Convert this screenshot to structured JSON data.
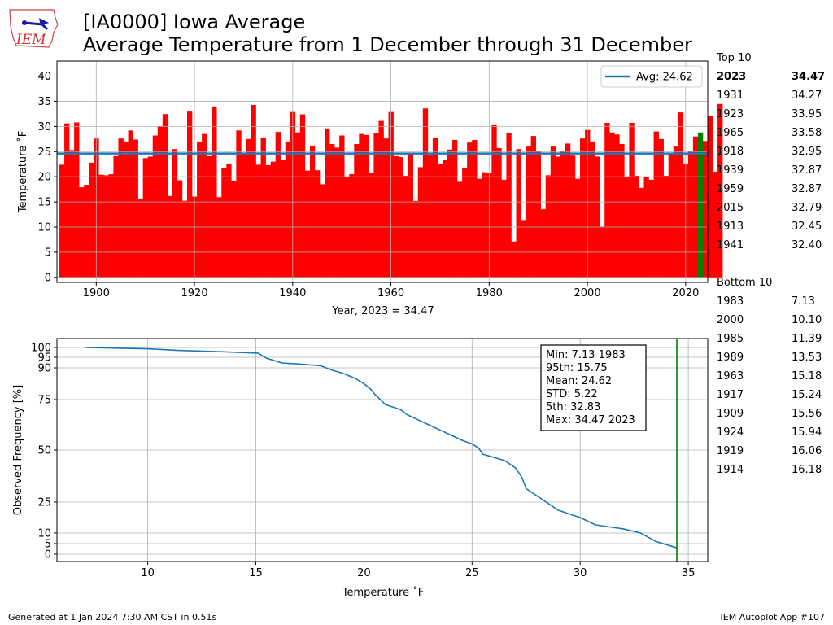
{
  "logo": {
    "text": "IEM"
  },
  "titles": {
    "line1": "[IA0000] Iowa Average",
    "line2": "Average Temperature from 1 December through 31 December"
  },
  "rankings": {
    "top_label": "Top 10",
    "top": [
      {
        "year": "2023",
        "value": "34.47"
      },
      {
        "year": "1931",
        "value": "34.27"
      },
      {
        "year": "1923",
        "value": "33.95"
      },
      {
        "year": "1965",
        "value": "33.58"
      },
      {
        "year": "1918",
        "value": "32.95"
      },
      {
        "year": "1939",
        "value": "32.87"
      },
      {
        "year": "1959",
        "value": "32.87"
      },
      {
        "year": "2015",
        "value": "32.79"
      },
      {
        "year": "1913",
        "value": "32.45"
      },
      {
        "year": "1941",
        "value": "32.40"
      }
    ],
    "bottom_label": "Bottom 10",
    "bottom": [
      {
        "year": "1983",
        "value": "7.13"
      },
      {
        "year": "2000",
        "value": "10.10"
      },
      {
        "year": "1985",
        "value": "11.39"
      },
      {
        "year": "1989",
        "value": "13.53"
      },
      {
        "year": "1963",
        "value": "15.18"
      },
      {
        "year": "1917",
        "value": "15.24"
      },
      {
        "year": "1909",
        "value": "15.56"
      },
      {
        "year": "1924",
        "value": "15.94"
      },
      {
        "year": "1919",
        "value": "16.06"
      },
      {
        "year": "1914",
        "value": "16.18"
      }
    ]
  },
  "footer": {
    "left": "Generated at 1 Jan 2024 7:30 AM CST in 0.51s",
    "right": "IEM Autoplot App #107"
  },
  "chart_data": [
    {
      "type": "bar",
      "xlabel": "Year, 2023 = 34.47",
      "ylabel": "Temperature ˚F",
      "xlim": [
        1892,
        2024.5
      ],
      "ylim": [
        -1,
        43
      ],
      "xticks": [
        1900,
        1920,
        1940,
        1960,
        1980,
        2000,
        2020
      ],
      "yticks": [
        0,
        5,
        10,
        15,
        20,
        25,
        30,
        35,
        40
      ],
      "grid": true,
      "bar_color": "#ff0000",
      "highlight_color": "#008000",
      "highlight_year": 2023,
      "average": 24.62,
      "average_color": "#1f77b4",
      "legend": {
        "label": "Avg: 24.62",
        "placement": "top-right"
      },
      "start_year": 1893,
      "values": [
        22.4,
        30.6,
        25.3,
        30.8,
        17.9,
        18.4,
        22.8,
        27.6,
        20.4,
        20.3,
        20.5,
        24.1,
        27.6,
        27.0,
        29.2,
        27.4,
        15.56,
        23.7,
        24.0,
        28.2,
        30.0,
        32.45,
        16.18,
        25.5,
        19.3,
        15.24,
        32.95,
        16.06,
        27.0,
        28.5,
        24.1,
        33.95,
        15.94,
        21.8,
        22.5,
        19.1,
        29.2,
        24.5,
        27.5,
        34.27,
        22.4,
        27.8,
        22.3,
        23.0,
        28.9,
        23.3,
        27.0,
        32.87,
        28.8,
        32.4,
        21.2,
        26.2,
        21.3,
        18.5,
        29.6,
        26.5,
        25.8,
        28.2,
        19.9,
        20.5,
        26.5,
        28.5,
        28.3,
        20.7,
        28.6,
        31.1,
        27.6,
        32.87,
        24.1,
        23.9,
        20.2,
        24.6,
        15.18,
        21.9,
        33.58,
        24.4,
        27.7,
        22.5,
        23.4,
        25.4,
        27.3,
        19.0,
        21.8,
        26.8,
        27.3,
        19.6,
        20.9,
        20.7,
        30.4,
        25.7,
        19.4,
        28.6,
        7.13,
        25.5,
        11.39,
        26.0,
        28.1,
        25.2,
        13.53,
        20.3,
        26.0,
        24.0,
        25.2,
        26.6,
        24.2,
        19.6,
        27.6,
        29.3,
        27.0,
        24.0,
        10.1,
        30.7,
        28.8,
        28.4,
        26.5,
        20.0,
        30.7,
        20.2,
        17.8,
        20.0,
        19.4,
        29.0,
        27.5,
        20.2,
        24.6,
        26.0,
        32.79,
        22.6,
        25.0,
        28.0,
        28.8,
        27.1,
        32.0,
        21.0,
        34.47
      ]
    },
    {
      "type": "line",
      "xlabel": "Temperature ˚F",
      "ylabel": "Observed Frequency [%]",
      "xlim": [
        5.8,
        35.9
      ],
      "xticks": [
        10,
        15,
        20,
        25,
        30,
        35
      ],
      "yticks": [
        0,
        5,
        10,
        25,
        50,
        75,
        90,
        95,
        100
      ],
      "grid": true,
      "line_color": "#1f77b4",
      "vline": {
        "x": 34.47,
        "color": "#008000"
      },
      "stats": [
        "Min: 7.13 1983",
        "95th: 15.75",
        "Mean: 24.62",
        "STD: 5.22",
        "5th: 32.83",
        "Max: 34.47 2023"
      ],
      "x": [
        7.13,
        10.1,
        11.4,
        13.5,
        15.1,
        15.5,
        16.0,
        16.2,
        17.0,
        18.0,
        18.5,
        19.0,
        19.6,
        20.0,
        20.3,
        20.5,
        21.0,
        21.7,
        22.0,
        22.5,
        23.0,
        23.5,
        24.0,
        24.5,
        25.0,
        25.3,
        25.5,
        26.0,
        26.5,
        27.0,
        27.3,
        27.5,
        28.0,
        28.5,
        29.0,
        30.0,
        30.7,
        31.0,
        32.0,
        32.8,
        33.5,
        34.0,
        34.47
      ],
      "y": [
        100,
        99.3,
        98.5,
        97.8,
        97.1,
        94.5,
        93.0,
        92.3,
        91.8,
        91.0,
        89.0,
        87.5,
        85.0,
        82.5,
        80.0,
        77.5,
        72.5,
        70.0,
        67.5,
        65.0,
        62.5,
        60.0,
        57.5,
        55.0,
        53.0,
        51.0,
        48.0,
        46.5,
        45.0,
        41.5,
        37.0,
        31.5,
        28.0,
        24.5,
        21.0,
        17.5,
        14.0,
        13.5,
        12.0,
        10.0,
        6.0,
        4.5,
        3.0
      ]
    }
  ]
}
